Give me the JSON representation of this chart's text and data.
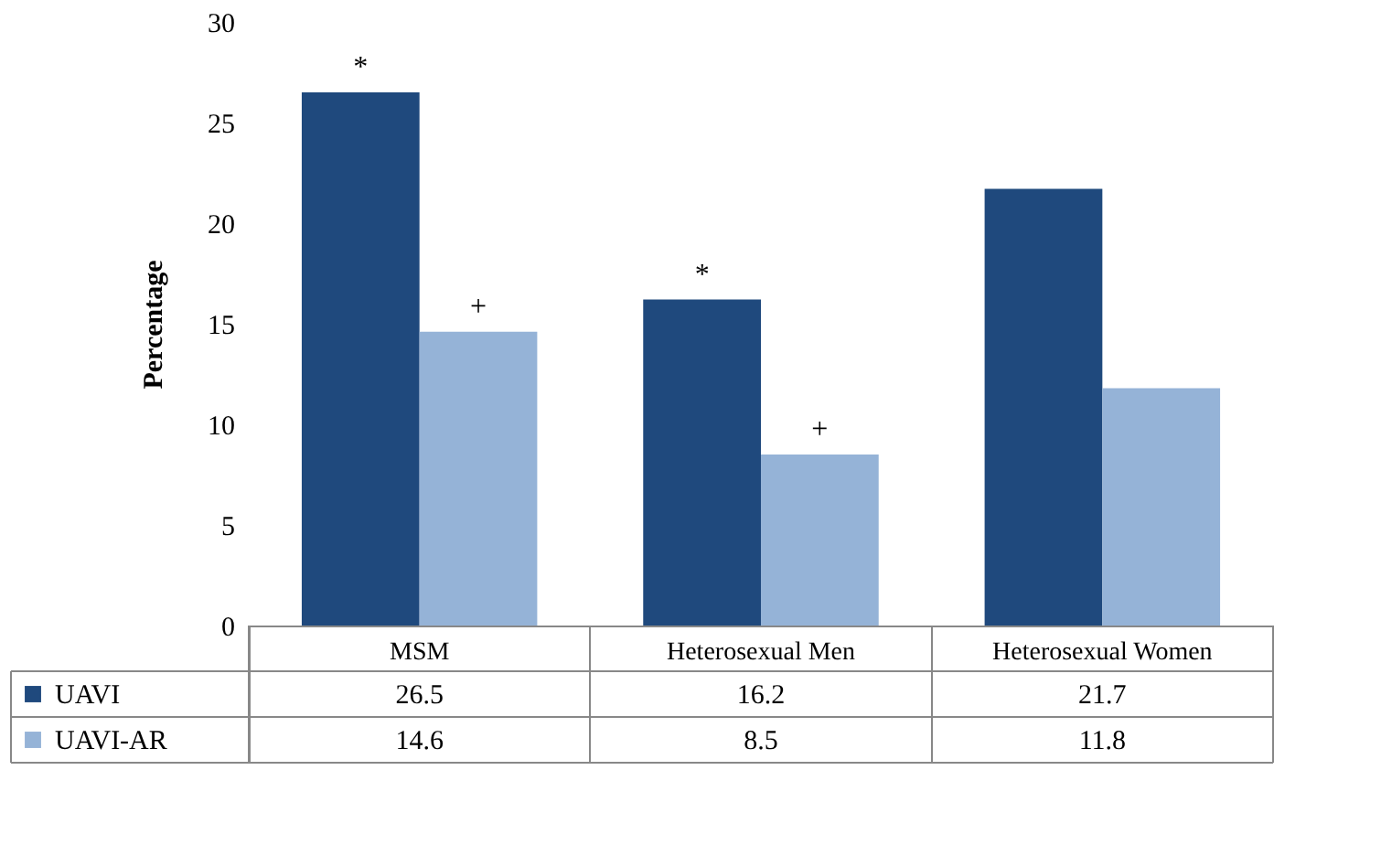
{
  "chart_data": {
    "type": "bar",
    "ylabel": "Percentage",
    "categories": [
      "MSM",
      "Heterosexual Men",
      "Heterosexual Women"
    ],
    "series": [
      {
        "name": "UAVI",
        "color": "#1f497d",
        "values": [
          26.5,
          16.2,
          21.7
        ]
      },
      {
        "name": "UAVI-AR",
        "color": "#95b3d7",
        "values": [
          14.6,
          8.5,
          11.8
        ]
      }
    ],
    "ylim": [
      0,
      30
    ],
    "yticks": [
      0,
      5,
      10,
      15,
      20,
      25,
      30
    ],
    "grid": false,
    "data_labels": true,
    "legend": "bottom",
    "annotations": [
      {
        "text": "*",
        "x": "MSM",
        "y": 26.5
      },
      {
        "text": "+",
        "x": "MSM",
        "y": 14.6
      },
      {
        "text": "*",
        "x": "Heterosexual Men",
        "y": 16.2
      },
      {
        "text": "+",
        "x": "Heterosexual Men",
        "y": 8.5
      }
    ]
  }
}
